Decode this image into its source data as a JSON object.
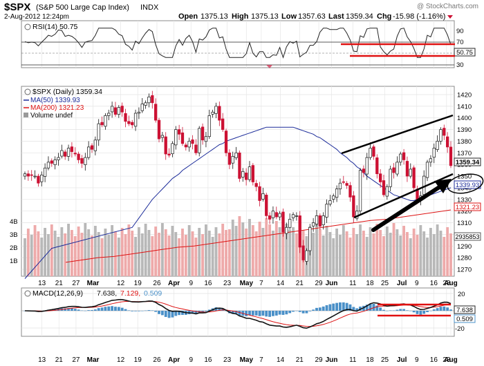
{
  "header": {
    "symbol": "$SPX",
    "name": "(S&P 500 Large Cap Index)",
    "exchange": "INDX",
    "date": "2-Aug-2012 12:24pm",
    "open_label": "Open",
    "open": "1375.13",
    "high_label": "High",
    "high": "1375.13",
    "low_label": "Low",
    "low": "1357.63",
    "last_label": "Last",
    "last": "1359.34",
    "chg_label": "Chg",
    "chg": "-15.98 (-1.16%)",
    "watermark": "@ StockCharts.com"
  },
  "colors": {
    "up": "#111111",
    "down": "#cc1133",
    "ma50": "#1a2a99",
    "ma200": "#dd1111",
    "vol_up": "#b8b8b8",
    "vol_down": "#eeaaaa",
    "hist": "#4a90c8",
    "annotation_red": "#e01010"
  },
  "rsi": {
    "legend": "RSI(14) 50.75",
    "value_tag": "50.75",
    "ticks": [
      "90",
      "70",
      "50",
      "30"
    ]
  },
  "main": {
    "legend_symbol": "$SPX (Daily) 1359.34",
    "legend_ma50": "MA(50) 1339.93",
    "legend_ma200": "MA(200) 1321.23",
    "legend_volume": "Volume undef",
    "price_ticks": [
      "1420",
      "1410",
      "1400",
      "1390",
      "1380",
      "1370",
      "1360",
      "1350",
      "1340",
      "1330",
      "1320",
      "1310",
      "1300",
      "1290",
      "1280",
      "1270"
    ],
    "tag_last": "1359.34",
    "tag_ma50": "1339.93",
    "tag_ma200": "1321.23",
    "tag_volume": "2935853",
    "volume_ticks": [
      "4B",
      "3B",
      "2B",
      "1B"
    ]
  },
  "macd": {
    "legend_label": "MACD(12,26,9)",
    "legend_macd": "7.638,",
    "legend_signal": "7.129,",
    "legend_hist": "0.509",
    "tag_macd": "7.638",
    "tag_hist": "0.509",
    "ticks": [
      "20",
      "0",
      "-20"
    ]
  },
  "date_labels": [
    "13",
    "21",
    "27",
    "Mar",
    "12",
    "19",
    "26",
    "Apr",
    "9",
    "16",
    "23",
    "May",
    "7",
    "14",
    "21",
    "29",
    "Jun",
    "11",
    "18",
    "25",
    "Jul",
    "9",
    "16",
    "23",
    "Aug"
  ],
  "bold_dates": [
    "Mar",
    "Apr",
    "May",
    "Jun",
    "Jul",
    "Aug"
  ],
  "chart_data": {
    "type": "candlestick",
    "title": "$SPX (S&P 500 Large Cap Index) INDX",
    "start_date": "2012-02-13",
    "end_date": "2012-08-02",
    "price_range": [
      1265,
      1425
    ],
    "grid": true,
    "series_close": [
      1352,
      1350,
      1351,
      1350,
      1344,
      1351,
      1357,
      1362,
      1361,
      1364,
      1366,
      1372,
      1367,
      1374,
      1371,
      1369,
      1364,
      1361,
      1366,
      1375,
      1373,
      1381,
      1395,
      1394,
      1402,
      1404,
      1410,
      1403,
      1409,
      1405,
      1397,
      1395,
      1394,
      1404,
      1405,
      1412,
      1413,
      1418,
      1413,
      1398,
      1382,
      1385,
      1369,
      1368,
      1378,
      1390,
      1386,
      1378,
      1375,
      1380,
      1378,
      1370,
      1391,
      1381,
      1384,
      1402,
      1405,
      1410,
      1398,
      1390,
      1370,
      1360,
      1367,
      1370,
      1348,
      1354,
      1347,
      1358,
      1345,
      1341,
      1329,
      1335,
      1316,
      1313,
      1320,
      1315,
      1318,
      1302,
      1306,
      1313,
      1317,
      1316,
      1289,
      1278,
      1286,
      1306,
      1310,
      1316,
      1307,
      1316,
      1326,
      1329,
      1333,
      1339,
      1344,
      1345,
      1342,
      1332,
      1315,
      1320,
      1355,
      1353,
      1366,
      1374,
      1367,
      1352,
      1345,
      1334,
      1341,
      1356,
      1353,
      1362,
      1369,
      1364,
      1350,
      1356,
      1340,
      1330,
      1333,
      1350,
      1362,
      1365,
      1374,
      1380,
      1390,
      1385,
      1375,
      1359
    ],
    "ma50": [
      1306,
      1310,
      1314,
      1318,
      1322,
      1326,
      1330,
      1333,
      1336,
      1339,
      1342,
      1345,
      1348,
      1350,
      1352,
      1355,
      1357,
      1359,
      1361,
      1363,
      1365,
      1367,
      1369,
      1371,
      1373,
      1375,
      1377,
      1378,
      1380,
      1381,
      1382,
      1383,
      1384,
      1385,
      1386,
      1387,
      1388,
      1389,
      1390,
      1391,
      1392,
      1392,
      1392,
      1392,
      1392,
      1392,
      1392,
      1392,
      1392,
      1391,
      1390,
      1389,
      1388,
      1387,
      1386,
      1384,
      1383,
      1381,
      1379,
      1377,
      1375,
      1373,
      1370,
      1368,
      1366,
      1363,
      1361,
      1358,
      1356,
      1353,
      1350,
      1348,
      1346,
      1344,
      1342,
      1340,
      1338,
      1336,
      1334,
      1333,
      1332,
      1331,
      1330,
      1329,
      1329,
      1330,
      1331,
      1332,
      1333,
      1334,
      1335,
      1336,
      1337,
      1338,
      1339,
      1340
    ],
    "ma200": [
      1276,
      1278,
      1280,
      1281,
      1283,
      1285,
      1287,
      1289,
      1290,
      1292,
      1294,
      1296,
      1298,
      1300,
      1302,
      1304,
      1306,
      1308,
      1310,
      1312,
      1313,
      1315,
      1317,
      1319,
      1321
    ],
    "rsi14_last": 50.75,
    "macd_last": 7.638,
    "signal_last": 7.129,
    "histogram_last": 0.509,
    "volume_axis": [
      "1B",
      "2B",
      "3B",
      "4B"
    ]
  }
}
